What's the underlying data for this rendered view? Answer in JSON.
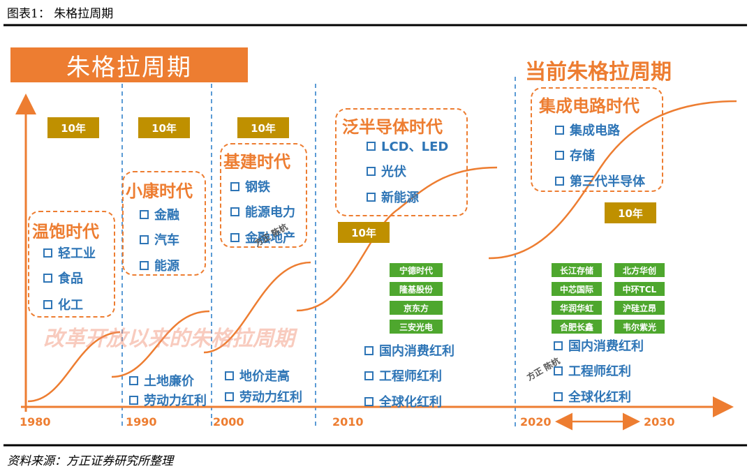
{
  "header": {
    "title": "图表1：  朱格拉周期"
  },
  "banner": "朱格拉周期",
  "current_label": "当前朱格拉周期",
  "durations": [
    "10年",
    "10年",
    "10年",
    "10年",
    "10年"
  ],
  "eras": [
    {
      "title": "温饱时代",
      "items": [
        "轻工业",
        "食品",
        "化工"
      ]
    },
    {
      "title": "小康时代",
      "items": [
        "金融",
        "汽车",
        "能源"
      ]
    },
    {
      "title": "基建时代",
      "items": [
        "钢铁",
        "能源电力",
        "金融地产"
      ]
    },
    {
      "title": "泛半导体时代",
      "items": [
        "LCD、LED",
        "光伏",
        "新能源"
      ]
    },
    {
      "title": "集成电路时代",
      "items": [
        "集成电路",
        "存储",
        "第三代半导体"
      ]
    }
  ],
  "watermark": "改革开放以来的朱格拉周期",
  "drivers": [
    {
      "items": [
        "土地廉价",
        "劳动力红利"
      ]
    },
    {
      "items": [
        "地价走高",
        "劳动力红利"
      ]
    },
    {
      "items": [
        "国内消费红利",
        "工程师红利",
        "全球化红利"
      ]
    },
    {
      "items": [
        "国内消费红利",
        "工程师红利",
        "全球化红利"
      ]
    }
  ],
  "companies": [
    [
      "宁德时代",
      "隆基股份",
      "京东方",
      "三安光电"
    ],
    [
      "长江存储",
      "北方华创",
      "中芯国际",
      "中环TCL",
      "华润华虹",
      "沪硅立昂",
      "合肥长鑫",
      "韦尔紫光"
    ]
  ],
  "years": [
    1980,
    1990,
    2000,
    2010,
    2020,
    2030
  ],
  "stamps": [
    "方正 陈杭",
    "方正 陈杭"
  ],
  "source": "资料来源：方正证券研究所整理"
}
